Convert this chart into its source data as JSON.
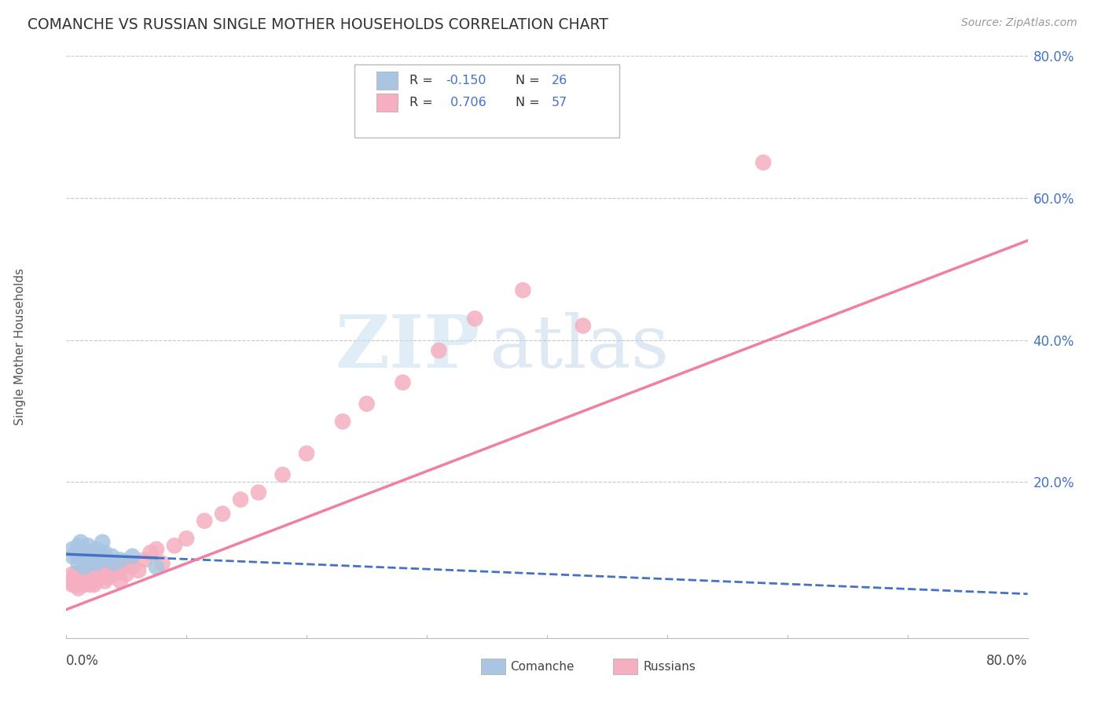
{
  "title": "COMANCHE VS RUSSIAN SINGLE MOTHER HOUSEHOLDS CORRELATION CHART",
  "source": "Source: ZipAtlas.com",
  "ylabel": "Single Mother Households",
  "y_tick_values": [
    0.0,
    0.2,
    0.4,
    0.6,
    0.8
  ],
  "xlim": [
    0.0,
    0.8
  ],
  "ylim": [
    -0.02,
    0.8
  ],
  "comanche_R": -0.15,
  "comanche_N": 26,
  "russian_R": 0.706,
  "russian_N": 57,
  "comanche_color": "#aac5e2",
  "russian_color": "#f5afc0",
  "comanche_line_color": "#4472c4",
  "russian_line_color": "#f080a0",
  "legend_label_comanche": "Comanche",
  "legend_label_russian": "Russians",
  "watermark_ZIP": "ZIP",
  "watermark_atlas": "atlas",
  "background_color": "#ffffff",
  "comanche_points_x": [
    0.005,
    0.005,
    0.008,
    0.01,
    0.01,
    0.012,
    0.012,
    0.015,
    0.015,
    0.018,
    0.018,
    0.02,
    0.02,
    0.022,
    0.025,
    0.025,
    0.028,
    0.03,
    0.03,
    0.032,
    0.035,
    0.038,
    0.04,
    0.045,
    0.055,
    0.075
  ],
  "comanche_points_y": [
    0.095,
    0.105,
    0.1,
    0.085,
    0.11,
    0.095,
    0.115,
    0.08,
    0.105,
    0.09,
    0.11,
    0.085,
    0.1,
    0.095,
    0.085,
    0.105,
    0.09,
    0.095,
    0.115,
    0.1,
    0.09,
    0.095,
    0.085,
    0.09,
    0.095,
    0.08
  ],
  "russian_points_x": [
    0.003,
    0.005,
    0.005,
    0.006,
    0.007,
    0.008,
    0.008,
    0.009,
    0.01,
    0.01,
    0.011,
    0.012,
    0.013,
    0.015,
    0.015,
    0.016,
    0.017,
    0.018,
    0.019,
    0.02,
    0.022,
    0.023,
    0.025,
    0.028,
    0.03,
    0.032,
    0.035,
    0.035,
    0.038,
    0.04,
    0.043,
    0.045,
    0.048,
    0.05,
    0.052,
    0.055,
    0.06,
    0.065,
    0.07,
    0.075,
    0.08,
    0.09,
    0.1,
    0.115,
    0.13,
    0.145,
    0.16,
    0.18,
    0.2,
    0.23,
    0.25,
    0.28,
    0.31,
    0.34,
    0.38,
    0.43,
    0.58
  ],
  "russian_points_y": [
    0.06,
    0.055,
    0.07,
    0.06,
    0.065,
    0.055,
    0.07,
    0.06,
    0.05,
    0.07,
    0.065,
    0.06,
    0.07,
    0.055,
    0.075,
    0.065,
    0.06,
    0.07,
    0.055,
    0.065,
    0.07,
    0.055,
    0.06,
    0.075,
    0.07,
    0.06,
    0.08,
    0.065,
    0.075,
    0.07,
    0.075,
    0.06,
    0.08,
    0.07,
    0.085,
    0.08,
    0.075,
    0.09,
    0.1,
    0.105,
    0.085,
    0.11,
    0.12,
    0.145,
    0.155,
    0.175,
    0.185,
    0.21,
    0.24,
    0.285,
    0.31,
    0.34,
    0.385,
    0.43,
    0.47,
    0.42,
    0.65
  ]
}
